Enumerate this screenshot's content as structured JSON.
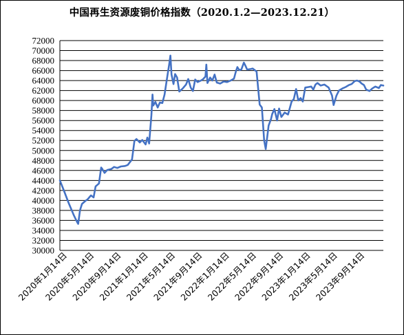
{
  "chart_data": {
    "type": "line",
    "title": "中国再生资源废铜价格指数（2020.1.2—2023.12.21）",
    "xlabel": "",
    "ylabel": "",
    "ylim": [
      30000,
      72000
    ],
    "y_ticks": [
      "30000",
      "32000",
      "34000",
      "36000",
      "38000",
      "40000",
      "42000",
      "44000",
      "46000",
      "48000",
      "50000",
      "52000",
      "54000",
      "56000",
      "58000",
      "60000",
      "62000",
      "64000",
      "66000",
      "68000",
      "70000",
      "72000"
    ],
    "x_tick_labels": [
      "2020年1月14日",
      "2020年5月14日",
      "2020年9月14日",
      "2021年1月14日",
      "2021年5月14日",
      "2021年9月14日",
      "2022年1月14日",
      "2022年5月14日",
      "2022年9月14日",
      "2023年1月14日",
      "2023年5月14日",
      "2023年9月14日"
    ],
    "x_range": [
      "2020-01-02",
      "2023-12-21"
    ],
    "grid": "horizontal",
    "line_color": "#4472C4",
    "series": [
      {
        "points": [
          [
            "2020-01-02",
            44000
          ],
          [
            "2020-01-20",
            42000
          ],
          [
            "2020-02-10",
            39500
          ],
          [
            "2020-03-05",
            37000
          ],
          [
            "2020-03-20",
            35600
          ],
          [
            "2020-03-24",
            35300
          ],
          [
            "2020-04-01",
            38000
          ],
          [
            "2020-04-10",
            39300
          ],
          [
            "2020-04-25",
            39900
          ],
          [
            "2020-05-05",
            40200
          ],
          [
            "2020-05-20",
            41000
          ],
          [
            "2020-06-01",
            40600
          ],
          [
            "2020-06-10",
            42800
          ],
          [
            "2020-06-25",
            43400
          ],
          [
            "2020-07-05",
            46600
          ],
          [
            "2020-07-10",
            46300
          ],
          [
            "2020-07-20",
            45500
          ],
          [
            "2020-08-01",
            46100
          ],
          [
            "2020-08-20",
            46300
          ],
          [
            "2020-09-01",
            46700
          ],
          [
            "2020-09-15",
            46500
          ],
          [
            "2020-10-01",
            46800
          ],
          [
            "2020-10-20",
            46900
          ],
          [
            "2020-11-01",
            47100
          ],
          [
            "2020-11-20",
            48200
          ],
          [
            "2020-12-01",
            51900
          ],
          [
            "2020-12-10",
            52300
          ],
          [
            "2020-12-25",
            51600
          ],
          [
            "2021-01-05",
            52100
          ],
          [
            "2021-01-20",
            51200
          ],
          [
            "2021-01-28",
            52600
          ],
          [
            "2021-02-05",
            51400
          ],
          [
            "2021-02-15",
            57100
          ],
          [
            "2021-02-20",
            61200
          ],
          [
            "2021-02-23",
            59000
          ],
          [
            "2021-03-05",
            59700
          ],
          [
            "2021-03-15",
            58600
          ],
          [
            "2021-03-25",
            59600
          ],
          [
            "2021-04-05",
            59500
          ],
          [
            "2021-04-15",
            61200
          ],
          [
            "2021-04-28",
            65000
          ],
          [
            "2021-05-06",
            67300
          ],
          [
            "2021-05-11",
            69000
          ],
          [
            "2021-05-16",
            65200
          ],
          [
            "2021-05-25",
            63300
          ],
          [
            "2021-06-01",
            65300
          ],
          [
            "2021-06-10",
            64600
          ],
          [
            "2021-06-20",
            61800
          ],
          [
            "2021-07-05",
            62400
          ],
          [
            "2021-07-20",
            63200
          ],
          [
            "2021-07-30",
            64300
          ],
          [
            "2021-08-10",
            62600
          ],
          [
            "2021-08-20",
            61900
          ],
          [
            "2021-08-30",
            64200
          ],
          [
            "2021-09-10",
            63700
          ],
          [
            "2021-09-25",
            64000
          ],
          [
            "2021-10-05",
            64300
          ],
          [
            "2021-10-15",
            64800
          ],
          [
            "2021-10-19",
            67200
          ],
          [
            "2021-10-24",
            63500
          ],
          [
            "2021-11-05",
            64600
          ],
          [
            "2021-11-15",
            64000
          ],
          [
            "2021-11-25",
            65200
          ],
          [
            "2021-12-05",
            63600
          ],
          [
            "2021-12-20",
            63400
          ],
          [
            "2022-01-05",
            63800
          ],
          [
            "2022-01-20",
            63700
          ],
          [
            "2022-02-05",
            64000
          ],
          [
            "2022-02-20",
            64400
          ],
          [
            "2022-03-01",
            65900
          ],
          [
            "2022-03-07",
            66700
          ],
          [
            "2022-03-15",
            66100
          ],
          [
            "2022-03-25",
            66200
          ],
          [
            "2022-04-05",
            67600
          ],
          [
            "2022-04-12",
            67000
          ],
          [
            "2022-04-20",
            66200
          ],
          [
            "2022-05-05",
            66300
          ],
          [
            "2022-05-15",
            66400
          ],
          [
            "2022-06-01",
            65800
          ],
          [
            "2022-06-15",
            59200
          ],
          [
            "2022-06-25",
            58600
          ],
          [
            "2022-07-05",
            52000
          ],
          [
            "2022-07-12",
            50300
          ],
          [
            "2022-07-25",
            55000
          ],
          [
            "2022-08-05",
            56300
          ],
          [
            "2022-08-10",
            57300
          ],
          [
            "2022-08-20",
            58300
          ],
          [
            "2022-09-01",
            56000
          ],
          [
            "2022-09-10",
            58400
          ],
          [
            "2022-09-20",
            56700
          ],
          [
            "2022-10-05",
            57600
          ],
          [
            "2022-10-20",
            57200
          ],
          [
            "2022-11-05",
            59800
          ],
          [
            "2022-11-15",
            60300
          ],
          [
            "2022-11-25",
            62300
          ],
          [
            "2022-12-05",
            60000
          ],
          [
            "2022-12-15",
            60500
          ],
          [
            "2022-12-25",
            59800
          ],
          [
            "2023-01-05",
            62600
          ],
          [
            "2023-01-20",
            62700
          ],
          [
            "2023-02-01",
            62800
          ],
          [
            "2023-02-10",
            62200
          ],
          [
            "2023-02-20",
            63200
          ],
          [
            "2023-03-01",
            63500
          ],
          [
            "2023-03-15",
            63000
          ],
          [
            "2023-04-01",
            63200
          ],
          [
            "2023-04-20",
            62600
          ],
          [
            "2023-05-05",
            61000
          ],
          [
            "2023-05-12",
            59100
          ],
          [
            "2023-05-25",
            61000
          ],
          [
            "2023-06-05",
            62000
          ],
          [
            "2023-06-20",
            62400
          ],
          [
            "2023-07-05",
            62700
          ],
          [
            "2023-07-20",
            63100
          ],
          [
            "2023-08-01",
            63300
          ],
          [
            "2023-08-15",
            63900
          ],
          [
            "2023-08-25",
            64000
          ],
          [
            "2023-09-05",
            63800
          ],
          [
            "2023-09-15",
            63400
          ],
          [
            "2023-09-25",
            63100
          ],
          [
            "2023-10-05",
            62200
          ],
          [
            "2023-10-20",
            61900
          ],
          [
            "2023-11-01",
            62400
          ],
          [
            "2023-11-15",
            62800
          ],
          [
            "2023-12-01",
            62500
          ],
          [
            "2023-12-10",
            63100
          ],
          [
            "2023-12-21",
            63000
          ]
        ]
      }
    ]
  }
}
